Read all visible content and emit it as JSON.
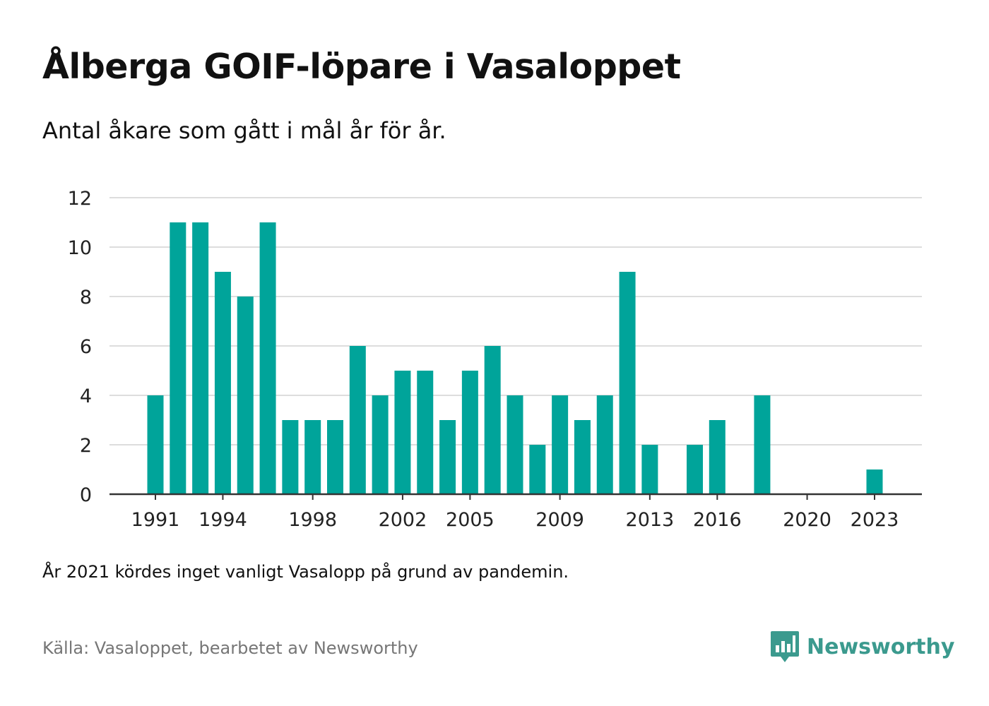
{
  "title": "Ålberga GOIF-löpare i Vasaloppet",
  "subtitle": "Antal åkare som gått i mål år för år.",
  "note": "År 2021 kördes inget vanligt Vasalopp på grund av pandemin.",
  "source": "Källa: Vasaloppet, bearbetet av Newsworthy",
  "brand": {
    "name": "Newsworthy",
    "icon": "newsworthy-logo-icon",
    "color": "#3b9a8e"
  },
  "colors": {
    "bar": "#00a49a",
    "grid": "#dddddd",
    "axis": "#333333"
  },
  "chart_data": {
    "type": "bar",
    "x": [
      1991,
      1992,
      1993,
      1994,
      1995,
      1996,
      1997,
      1998,
      1999,
      2000,
      2001,
      2002,
      2003,
      2004,
      2005,
      2006,
      2007,
      2008,
      2009,
      2010,
      2011,
      2012,
      2013,
      2014,
      2015,
      2016,
      2017,
      2018,
      2019,
      2020,
      2021,
      2022,
      2023
    ],
    "values": [
      4,
      11,
      11,
      9,
      8,
      11,
      3,
      3,
      3,
      6,
      4,
      5,
      5,
      3,
      5,
      6,
      4,
      2,
      4,
      3,
      4,
      9,
      2,
      0,
      2,
      3,
      0,
      4,
      0,
      0,
      0,
      0,
      1
    ],
    "x_tick_labels": [
      "1991",
      "1994",
      "1998",
      "2002",
      "2005",
      "2009",
      "2013",
      "2016",
      "2020",
      "2023"
    ],
    "y_ticks": [
      0,
      2,
      4,
      6,
      8,
      10,
      12
    ],
    "ylim": [
      0,
      12
    ],
    "xlabel": "",
    "ylabel": "",
    "grid": true,
    "legend": "none"
  }
}
